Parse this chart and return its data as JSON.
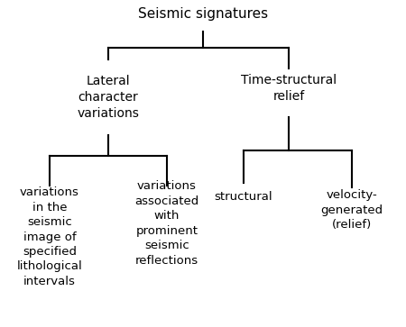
{
  "title": "Seismic signatures",
  "level1_left": "Lateral\ncharacter\nvariations",
  "level1_right": "Time-structural\nrelief",
  "level2_ll": "variations\nin the\nseismic\nimage of\nspecified\nlithological\nintervals",
  "level2_lr": "variations\nassociated\nwith\nprominent\nseismic\nreflections",
  "level2_rl": "structural",
  "level2_rr": "velocity-\ngenerated\n(relief)",
  "bg_color": "#ffffff",
  "line_color": "#000000",
  "text_color": "#000000",
  "fontsize_title": 11,
  "fontsize_l1": 10,
  "fontsize_l2": 9.5,
  "lw": 1.5
}
